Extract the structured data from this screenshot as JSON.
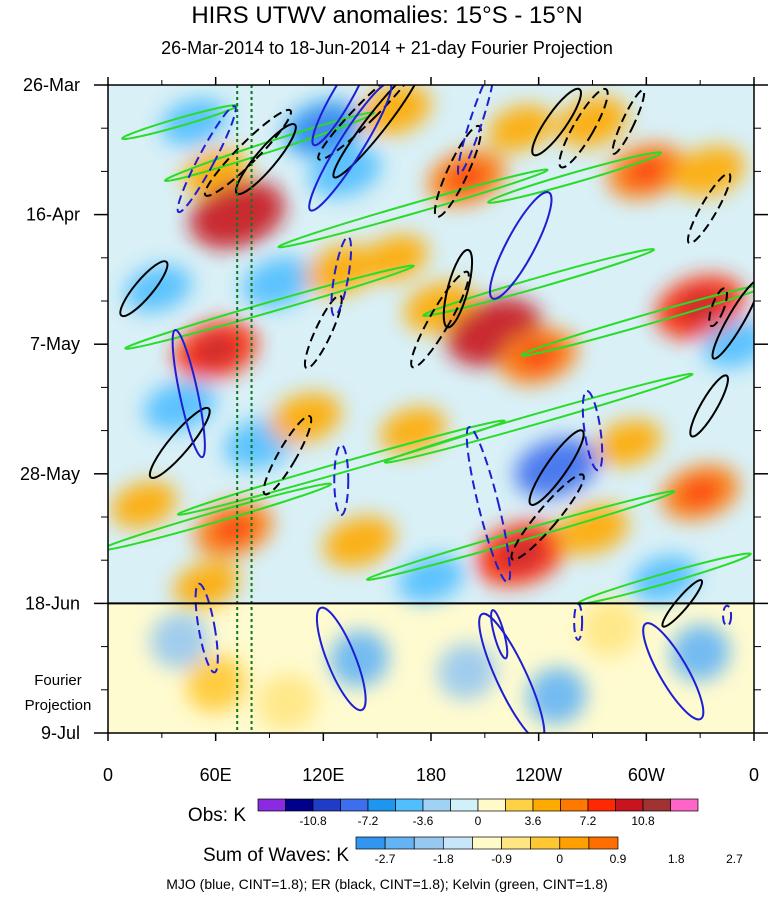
{
  "title": "HIRS UTWV anomalies: 15°S - 15°N",
  "subtitle": "26-Mar-2014 to 18-Jun-2014 + 21-day Fourier Projection",
  "caption": "MJO (blue, CINT=1.8); ER (black, CINT=1.8); Kelvin (green, CINT=1.8)",
  "projection_label": [
    "Fourier",
    "Projection"
  ],
  "chart_data": {
    "type": "heatmap",
    "title": "HIRS UTWV anomalies: 15°S - 15°N",
    "x_axis": {
      "ticks": [
        "0",
        "60E",
        "120E",
        "180",
        "120W",
        "60W",
        "0"
      ],
      "longitudes_east": [
        0,
        60,
        120,
        180,
        240,
        300,
        360
      ],
      "range": [
        0,
        360
      ]
    },
    "y_axis": {
      "ticks": [
        "26-Mar",
        "16-Apr",
        "7-May",
        "28-May",
        "18-Jun",
        "9-Jul"
      ],
      "dates": [
        "2014-03-26",
        "2014-04-16",
        "2014-05-07",
        "2014-05-28",
        "2014-06-18",
        "2014-07-09"
      ],
      "range": [
        "2014-03-26",
        "2014-07-09"
      ],
      "direction": "time increases downward"
    },
    "observed_end_date": "2014-06-18",
    "reference_longitudes_dotted": [
      72,
      80
    ],
    "colorbar_obs": {
      "label": "Obs: K",
      "tick_labels": [
        "-10.8",
        "-7.2",
        "-3.6",
        "0",
        "3.6",
        "7.2",
        "10.8"
      ],
      "colors": [
        "#8a2be2",
        "#00008b",
        "#1e3cc8",
        "#3c6eee",
        "#1e96f0",
        "#50beff",
        "#a0d2f5",
        "#d2f0fa",
        "#fffac8",
        "#ffd246",
        "#ffaa00",
        "#ff7800",
        "#ff2800",
        "#c8141e",
        "#a03232",
        "#ff64c8"
      ]
    },
    "colorbar_waves": {
      "label": "Sum of Waves: K",
      "tick_labels": [
        "-2.7",
        "-1.8",
        "-0.9",
        "0",
        "0.9",
        "1.8",
        "2.7"
      ],
      "colors": [
        "#3296f0",
        "#64b4f5",
        "#96c8f0",
        "#c8e6fa",
        "#fffac8",
        "#ffe682",
        "#ffc832",
        "#ffa000",
        "#ff6e00"
      ]
    },
    "series": [
      {
        "name": "MJO",
        "color": "#1e1ed2",
        "cint": 1.8
      },
      {
        "name": "ER",
        "color": "#000000",
        "cint": 1.8
      },
      {
        "name": "Kelvin",
        "color": "#28dc28",
        "cint": 1.8
      }
    ],
    "field": {
      "observed_blobs": [
        {
          "lon": 48,
          "day": 6,
          "v": -4
        },
        {
          "lon": 60,
          "day": 14,
          "v": 4
        },
        {
          "lon": 72,
          "day": 21,
          "v": 9
        },
        {
          "lon": 120,
          "day": 7,
          "v": -6
        },
        {
          "lon": 132,
          "day": 14,
          "v": -5
        },
        {
          "lon": 160,
          "day": 4,
          "v": 5
        },
        {
          "lon": 200,
          "day": 15,
          "v": 6
        },
        {
          "lon": 230,
          "day": 7,
          "v": 4
        },
        {
          "lon": 270,
          "day": 6,
          "v": 5
        },
        {
          "lon": 300,
          "day": 14,
          "v": 6
        },
        {
          "lon": 335,
          "day": 14,
          "v": 5
        },
        {
          "lon": 28,
          "day": 33,
          "v": -4
        },
        {
          "lon": 95,
          "day": 32,
          "v": -5
        },
        {
          "lon": 130,
          "day": 30,
          "v": 5
        },
        {
          "lon": 160,
          "day": 28,
          "v": 4
        },
        {
          "lon": 185,
          "day": 36,
          "v": 5
        },
        {
          "lon": 215,
          "day": 40,
          "v": 9
        },
        {
          "lon": 240,
          "day": 44,
          "v": 6
        },
        {
          "lon": 330,
          "day": 36,
          "v": 8
        },
        {
          "lon": 350,
          "day": 42,
          "v": -4
        },
        {
          "lon": 60,
          "day": 43,
          "v": 7
        },
        {
          "lon": 40,
          "day": 52,
          "v": -5
        },
        {
          "lon": 85,
          "day": 58,
          "v": -5
        },
        {
          "lon": 110,
          "day": 54,
          "v": 5
        },
        {
          "lon": 170,
          "day": 56,
          "v": 4
        },
        {
          "lon": 250,
          "day": 62,
          "v": -7
        },
        {
          "lon": 290,
          "day": 58,
          "v": 4
        },
        {
          "lon": 330,
          "day": 66,
          "v": 6
        },
        {
          "lon": 20,
          "day": 68,
          "v": 4
        },
        {
          "lon": 70,
          "day": 72,
          "v": 6
        },
        {
          "lon": 140,
          "day": 74,
          "v": 5
        },
        {
          "lon": 230,
          "day": 76,
          "v": 8
        },
        {
          "lon": 270,
          "day": 72,
          "v": 5
        },
        {
          "lon": 310,
          "day": 80,
          "v": -4
        },
        {
          "lon": 55,
          "day": 81,
          "v": 4
        },
        {
          "lon": 180,
          "day": 80,
          "v": -4
        }
      ],
      "projection_blobs": [
        {
          "lon": 40,
          "day": 90,
          "v": -1.2
        },
        {
          "lon": 60,
          "day": 97,
          "v": 1.5
        },
        {
          "lon": 140,
          "day": 93,
          "v": -1.5
        },
        {
          "lon": 200,
          "day": 95,
          "v": -1.2
        },
        {
          "lon": 250,
          "day": 99,
          "v": -1.6
        },
        {
          "lon": 280,
          "day": 88,
          "v": 1.4
        },
        {
          "lon": 330,
          "day": 92,
          "v": -1.5
        },
        {
          "lon": 100,
          "day": 100,
          "v": 0.8
        }
      ]
    },
    "contours": {
      "MJO": [
        {
          "lon": 55,
          "day": 12,
          "rx": 8,
          "ry": 60,
          "rot": 28,
          "dash": true
        },
        {
          "lon": 135,
          "day": 10,
          "rx": 12,
          "ry": 75,
          "rot": 32,
          "dash": false
        },
        {
          "lon": 230,
          "day": 26,
          "rx": 14,
          "ry": 60,
          "rot": 28,
          "dash": false
        },
        {
          "lon": 130,
          "day": 2,
          "rx": 10,
          "ry": 55,
          "rot": 30,
          "dash": false
        },
        {
          "lon": 130,
          "day": 31,
          "rx": 7,
          "ry": 40,
          "rot": 10,
          "dash": true
        },
        {
          "lon": 45,
          "day": 50,
          "rx": 9,
          "ry": 65,
          "rot": -12,
          "dash": false
        },
        {
          "lon": 205,
          "day": 6,
          "rx": 6,
          "ry": 55,
          "rot": 18,
          "dash": true
        },
        {
          "lon": 130,
          "day": 64,
          "rx": 7,
          "ry": 35,
          "rot": 0,
          "dash": true
        },
        {
          "lon": 212,
          "day": 68,
          "rx": 10,
          "ry": 80,
          "rot": -14,
          "dash": true
        },
        {
          "lon": 270,
          "day": 56,
          "rx": 8,
          "ry": 40,
          "rot": -8,
          "dash": true
        },
        {
          "lon": 55,
          "day": 88,
          "rx": 8,
          "ry": 45,
          "rot": -10,
          "dash": true
        },
        {
          "lon": 130,
          "day": 93,
          "rx": 14,
          "ry": 55,
          "rot": -22,
          "dash": false
        },
        {
          "lon": 225,
          "day": 96,
          "rx": 15,
          "ry": 70,
          "rot": -25,
          "dash": false
        },
        {
          "lon": 218,
          "day": 89,
          "rx": 5,
          "ry": 25,
          "rot": -15,
          "dash": false
        },
        {
          "lon": 315,
          "day": 95,
          "rx": 14,
          "ry": 55,
          "rot": -30,
          "dash": false
        },
        {
          "lon": 262,
          "day": 87,
          "rx": 4,
          "ry": 18,
          "rot": 0,
          "dash": true
        },
        {
          "lon": 345,
          "day": 86,
          "rx": 4,
          "ry": 10,
          "rot": 0,
          "dash": true
        }
      ],
      "ER": [
        {
          "lon": 88,
          "day": 12,
          "rx": 10,
          "ry": 45,
          "rot": 40,
          "dash": false
        },
        {
          "lon": 78,
          "day": 11,
          "rx": 10,
          "ry": 60,
          "rot": 45,
          "dash": true
        },
        {
          "lon": 150,
          "day": 6,
          "rx": 10,
          "ry": 70,
          "rot": 38,
          "dash": false
        },
        {
          "lon": 145,
          "day": 4,
          "rx": 10,
          "ry": 70,
          "rot": 45,
          "dash": true
        },
        {
          "lon": 195,
          "day": 14,
          "rx": 10,
          "ry": 50,
          "rot": 25,
          "dash": true
        },
        {
          "lon": 250,
          "day": 6,
          "rx": 10,
          "ry": 40,
          "rot": 35,
          "dash": false
        },
        {
          "lon": 265,
          "day": 7,
          "rx": 10,
          "ry": 45,
          "rot": 30,
          "dash": true
        },
        {
          "lon": 290,
          "day": 6,
          "rx": 6,
          "ry": 35,
          "rot": 25,
          "dash": true
        },
        {
          "lon": 335,
          "day": 20,
          "rx": 8,
          "ry": 40,
          "rot": 30,
          "dash": true
        },
        {
          "lon": 185,
          "day": 38,
          "rx": 10,
          "ry": 55,
          "rot": 30,
          "dash": true
        },
        {
          "lon": 195,
          "day": 33,
          "rx": 10,
          "ry": 40,
          "rot": 15,
          "dash": false
        },
        {
          "lon": 20,
          "day": 33,
          "rx": 9,
          "ry": 35,
          "rot": 40,
          "dash": false
        },
        {
          "lon": 40,
          "day": 58,
          "rx": 10,
          "ry": 45,
          "rot": 40,
          "dash": false
        },
        {
          "lon": 100,
          "day": 60,
          "rx": 9,
          "ry": 45,
          "rot": 30,
          "dash": true
        },
        {
          "lon": 120,
          "day": 40,
          "rx": 8,
          "ry": 40,
          "rot": 25,
          "dash": true
        },
        {
          "lon": 250,
          "day": 62,
          "rx": 10,
          "ry": 45,
          "rot": 35,
          "dash": false
        },
        {
          "lon": 245,
          "day": 70,
          "rx": 10,
          "ry": 55,
          "rot": 40,
          "dash": true
        },
        {
          "lon": 350,
          "day": 38,
          "rx": 8,
          "ry": 45,
          "rot": 30,
          "dash": false
        },
        {
          "lon": 335,
          "day": 52,
          "rx": 8,
          "ry": 35,
          "rot": 30,
          "dash": false
        },
        {
          "lon": 320,
          "day": 84,
          "rx": 6,
          "ry": 30,
          "rot": 40,
          "dash": false
        },
        {
          "lon": 340,
          "day": 36,
          "rx": 6,
          "ry": 20,
          "rot": 20,
          "dash": true
        }
      ],
      "Kelvin": [
        {
          "lon": 90,
          "day": 10,
          "rx": 5,
          "ry": 110,
          "rot": 72
        },
        {
          "lon": 260,
          "day": 15,
          "rx": 5,
          "ry": 90,
          "rot": 74
        },
        {
          "lon": 170,
          "day": 20,
          "rx": 5,
          "ry": 140,
          "rot": 74
        },
        {
          "lon": 240,
          "day": 32,
          "rx": 5,
          "ry": 120,
          "rot": 74
        },
        {
          "lon": 90,
          "day": 36,
          "rx": 5,
          "ry": 150,
          "rot": 74
        },
        {
          "lon": 240,
          "day": 54,
          "rx": 5,
          "ry": 160,
          "rot": 74
        },
        {
          "lon": 130,
          "day": 62,
          "rx": 5,
          "ry": 170,
          "rot": 74
        },
        {
          "lon": 300,
          "day": 38,
          "rx": 5,
          "ry": 130,
          "rot": 74
        },
        {
          "lon": 230,
          "day": 73,
          "rx": 5,
          "ry": 160,
          "rot": 74
        },
        {
          "lon": 60,
          "day": 70,
          "rx": 5,
          "ry": 120,
          "rot": 74
        },
        {
          "lon": 310,
          "day": 80,
          "rx": 5,
          "ry": 90,
          "rot": 74
        },
        {
          "lon": 40,
          "day": 6,
          "rx": 4,
          "ry": 60,
          "rot": 74
        }
      ]
    }
  }
}
